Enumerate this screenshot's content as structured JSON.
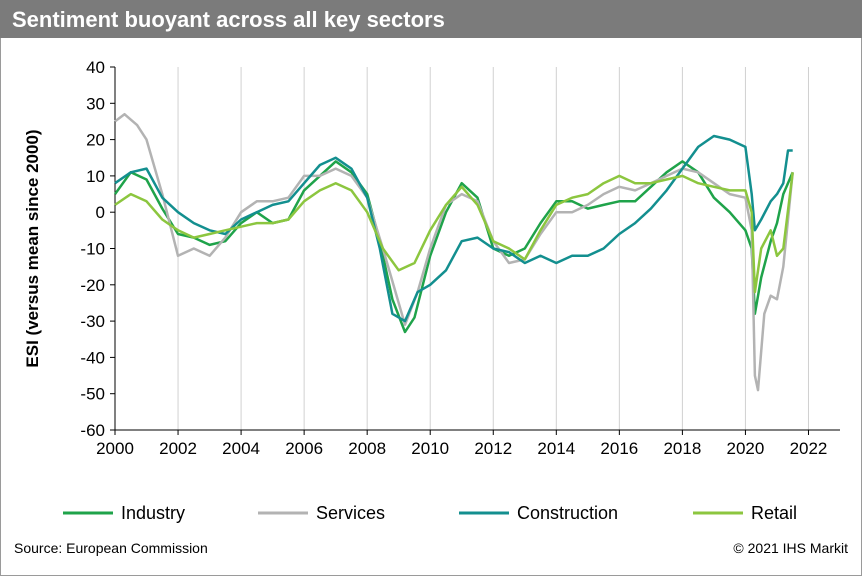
{
  "header": {
    "title": "Sentiment buoyant across all key sectors"
  },
  "footer": {
    "source": "Source: European Commission",
    "copyright": "© 2021 IHS Markit"
  },
  "chart_data": {
    "type": "line",
    "title": "Sentiment buoyant across all key sectors",
    "xlabel": "",
    "ylabel": "ESI (versus mean since 2000)",
    "xlim": [
      2000,
      2023
    ],
    "ylim": [
      -60,
      40
    ],
    "xticks": [
      2000,
      2002,
      2004,
      2006,
      2008,
      2010,
      2012,
      2014,
      2016,
      2018,
      2020,
      2022
    ],
    "yticks": [
      40,
      30,
      20,
      10,
      0,
      -10,
      -20,
      -30,
      -40,
      -50,
      -60
    ],
    "grid": {
      "vertical": true,
      "horizontal": false
    },
    "legend": "bottom",
    "series": [
      {
        "name": "Industry",
        "color": "#1fa34a",
        "points": [
          [
            2000,
            5
          ],
          [
            2000.5,
            11
          ],
          [
            2001,
            9
          ],
          [
            2001.5,
            1
          ],
          [
            2002,
            -6
          ],
          [
            2002.5,
            -7
          ],
          [
            2003,
            -9
          ],
          [
            2003.5,
            -8
          ],
          [
            2004,
            -3
          ],
          [
            2004.5,
            0
          ],
          [
            2005,
            -3
          ],
          [
            2005.5,
            -2
          ],
          [
            2006,
            6
          ],
          [
            2006.5,
            10
          ],
          [
            2007,
            14
          ],
          [
            2007.5,
            11
          ],
          [
            2008,
            5
          ],
          [
            2008.4,
            -8
          ],
          [
            2008.8,
            -24
          ],
          [
            2009.2,
            -33
          ],
          [
            2009.5,
            -29
          ],
          [
            2010,
            -12
          ],
          [
            2010.5,
            0
          ],
          [
            2011,
            8
          ],
          [
            2011.5,
            4
          ],
          [
            2012,
            -10
          ],
          [
            2012.5,
            -12
          ],
          [
            2013,
            -10
          ],
          [
            2013.5,
            -3
          ],
          [
            2014,
            3
          ],
          [
            2014.5,
            3
          ],
          [
            2015,
            1
          ],
          [
            2015.5,
            2
          ],
          [
            2016,
            3
          ],
          [
            2016.5,
            3
          ],
          [
            2017,
            7
          ],
          [
            2017.5,
            11
          ],
          [
            2018,
            14
          ],
          [
            2018.5,
            11
          ],
          [
            2019,
            4
          ],
          [
            2019.5,
            0
          ],
          [
            2020,
            -5
          ],
          [
            2020.2,
            -10
          ],
          [
            2020.3,
            -28
          ],
          [
            2020.5,
            -18
          ],
          [
            2020.8,
            -8
          ],
          [
            2021,
            -3
          ],
          [
            2021.2,
            5
          ],
          [
            2021.5,
            11
          ]
        ]
      },
      {
        "name": "Services",
        "color": "#b3b3b3",
        "points": [
          [
            2000,
            25
          ],
          [
            2000.3,
            27
          ],
          [
            2000.7,
            24
          ],
          [
            2001,
            20
          ],
          [
            2001.5,
            5
          ],
          [
            2002,
            -12
          ],
          [
            2002.5,
            -10
          ],
          [
            2003,
            -12
          ],
          [
            2003.5,
            -7
          ],
          [
            2004,
            0
          ],
          [
            2004.5,
            3
          ],
          [
            2005,
            3
          ],
          [
            2005.5,
            4
          ],
          [
            2006,
            10
          ],
          [
            2006.5,
            10
          ],
          [
            2007,
            12
          ],
          [
            2007.5,
            10
          ],
          [
            2008,
            4
          ],
          [
            2008.5,
            -10
          ],
          [
            2009,
            -25
          ],
          [
            2009.2,
            -31
          ],
          [
            2009.6,
            -22
          ],
          [
            2010,
            -10
          ],
          [
            2010.5,
            2
          ],
          [
            2011,
            5
          ],
          [
            2011.5,
            3
          ],
          [
            2012,
            -8
          ],
          [
            2012.5,
            -14
          ],
          [
            2013,
            -13
          ],
          [
            2013.5,
            -6
          ],
          [
            2014,
            0
          ],
          [
            2014.5,
            0
          ],
          [
            2015,
            2
          ],
          [
            2015.5,
            5
          ],
          [
            2016,
            7
          ],
          [
            2016.5,
            6
          ],
          [
            2017,
            8
          ],
          [
            2017.5,
            10
          ],
          [
            2018,
            12
          ],
          [
            2018.5,
            11
          ],
          [
            2019,
            8
          ],
          [
            2019.5,
            5
          ],
          [
            2020,
            4
          ],
          [
            2020.2,
            -5
          ],
          [
            2020.3,
            -45
          ],
          [
            2020.4,
            -49
          ],
          [
            2020.6,
            -28
          ],
          [
            2020.8,
            -23
          ],
          [
            2021,
            -24
          ],
          [
            2021.2,
            -15
          ],
          [
            2021.5,
            11
          ]
        ]
      },
      {
        "name": "Construction",
        "color": "#138f8f",
        "points": [
          [
            2000,
            8
          ],
          [
            2000.5,
            11
          ],
          [
            2001,
            12
          ],
          [
            2001.5,
            4
          ],
          [
            2002,
            0
          ],
          [
            2002.5,
            -3
          ],
          [
            2003,
            -5
          ],
          [
            2003.5,
            -6
          ],
          [
            2004,
            -2
          ],
          [
            2004.5,
            0
          ],
          [
            2005,
            2
          ],
          [
            2005.5,
            3
          ],
          [
            2006,
            8
          ],
          [
            2006.5,
            13
          ],
          [
            2007,
            15
          ],
          [
            2007.5,
            12
          ],
          [
            2008,
            4
          ],
          [
            2008.4,
            -10
          ],
          [
            2008.8,
            -28
          ],
          [
            2009.2,
            -30
          ],
          [
            2009.6,
            -22
          ],
          [
            2010,
            -20
          ],
          [
            2010.5,
            -16
          ],
          [
            2011,
            -8
          ],
          [
            2011.5,
            -7
          ],
          [
            2012,
            -10
          ],
          [
            2012.5,
            -11
          ],
          [
            2013,
            -14
          ],
          [
            2013.5,
            -12
          ],
          [
            2014,
            -14
          ],
          [
            2014.5,
            -12
          ],
          [
            2015,
            -12
          ],
          [
            2015.5,
            -10
          ],
          [
            2016,
            -6
          ],
          [
            2016.5,
            -3
          ],
          [
            2017,
            1
          ],
          [
            2017.5,
            6
          ],
          [
            2018,
            12
          ],
          [
            2018.5,
            18
          ],
          [
            2019,
            21
          ],
          [
            2019.5,
            20
          ],
          [
            2020,
            18
          ],
          [
            2020.2,
            5
          ],
          [
            2020.3,
            -5
          ],
          [
            2020.5,
            -2
          ],
          [
            2020.8,
            3
          ],
          [
            2021,
            5
          ],
          [
            2021.2,
            8
          ],
          [
            2021.35,
            17
          ],
          [
            2021.5,
            17
          ]
        ]
      },
      {
        "name": "Retail",
        "color": "#8cc63f",
        "points": [
          [
            2000,
            2
          ],
          [
            2000.5,
            5
          ],
          [
            2001,
            3
          ],
          [
            2001.5,
            -2
          ],
          [
            2002,
            -5
          ],
          [
            2002.5,
            -7
          ],
          [
            2003,
            -6
          ],
          [
            2003.5,
            -5
          ],
          [
            2004,
            -4
          ],
          [
            2004.5,
            -3
          ],
          [
            2005,
            -3
          ],
          [
            2005.5,
            -2
          ],
          [
            2006,
            3
          ],
          [
            2006.5,
            6
          ],
          [
            2007,
            8
          ],
          [
            2007.5,
            6
          ],
          [
            2008,
            0
          ],
          [
            2008.5,
            -10
          ],
          [
            2009,
            -16
          ],
          [
            2009.5,
            -14
          ],
          [
            2010,
            -5
          ],
          [
            2010.5,
            2
          ],
          [
            2011,
            7
          ],
          [
            2011.5,
            2
          ],
          [
            2012,
            -8
          ],
          [
            2012.5,
            -10
          ],
          [
            2013,
            -13
          ],
          [
            2013.5,
            -5
          ],
          [
            2014,
            2
          ],
          [
            2014.5,
            4
          ],
          [
            2015,
            5
          ],
          [
            2015.5,
            8
          ],
          [
            2016,
            10
          ],
          [
            2016.5,
            8
          ],
          [
            2017,
            8
          ],
          [
            2017.5,
            9
          ],
          [
            2018,
            10
          ],
          [
            2018.5,
            8
          ],
          [
            2019,
            7
          ],
          [
            2019.5,
            6
          ],
          [
            2020,
            6
          ],
          [
            2020.2,
            0
          ],
          [
            2020.3,
            -22
          ],
          [
            2020.5,
            -10
          ],
          [
            2020.8,
            -5
          ],
          [
            2021,
            -12
          ],
          [
            2021.2,
            -10
          ],
          [
            2021.5,
            11
          ]
        ]
      }
    ]
  }
}
